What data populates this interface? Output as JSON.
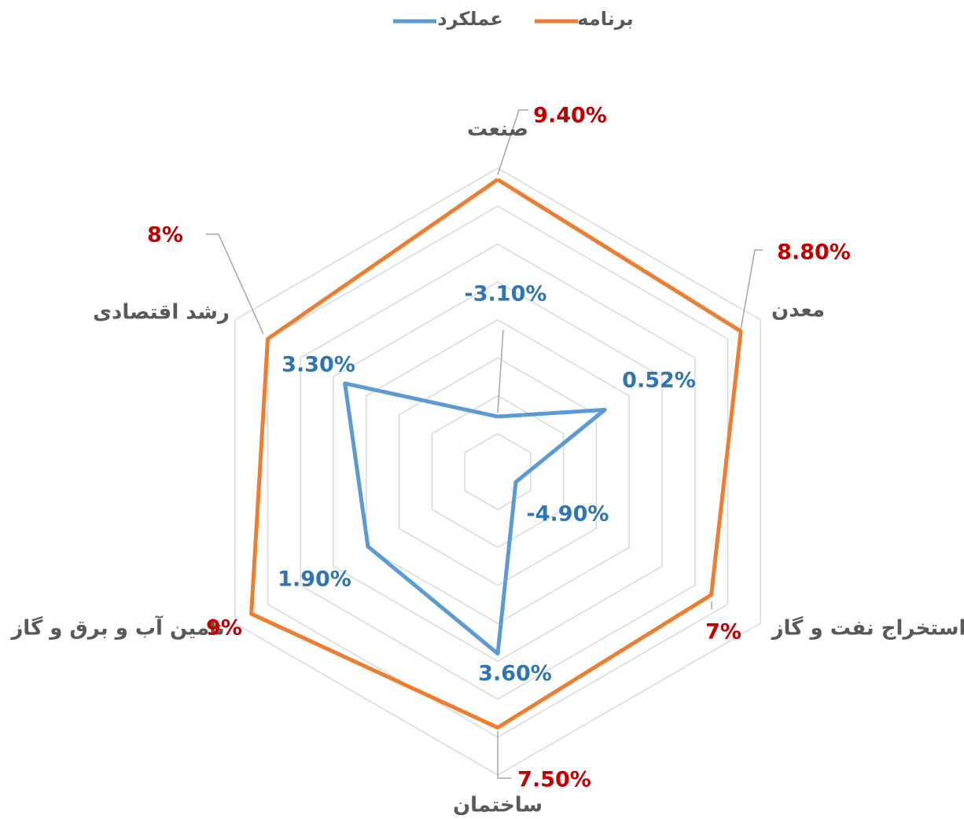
{
  "chart_data": {
    "type": "radar",
    "categories": [
      "صنعت",
      "معدن",
      "استخراج نفت و گاز",
      "ساختمان",
      "تامین آب و برق و گاز",
      "رشد اقتصادی"
    ],
    "series": [
      {
        "name": "برنامه",
        "color": "#ed7d31",
        "values": [
          9.4,
          8.8,
          7,
          7.5,
          9,
          8
        ],
        "value_labels": [
          "9.40%",
          "8.80%",
          "7%",
          "7.50%",
          "9%",
          "8%"
        ]
      },
      {
        "name": "عملکرد",
        "color": "#5b9bd5",
        "values": [
          -3.1,
          0.52,
          -4.9,
          3.6,
          1.9,
          3.3
        ],
        "value_labels": [
          "-3.10%",
          "0.52%",
          "-4.90%",
          "3.60%",
          "1.90%",
          "3.30%"
        ]
      }
    ],
    "ylim": [
      -6,
      10
    ],
    "yticks": [
      -6,
      -4,
      -2,
      0,
      2,
      4,
      6,
      8,
      10
    ],
    "grid": true,
    "legend": "top"
  }
}
